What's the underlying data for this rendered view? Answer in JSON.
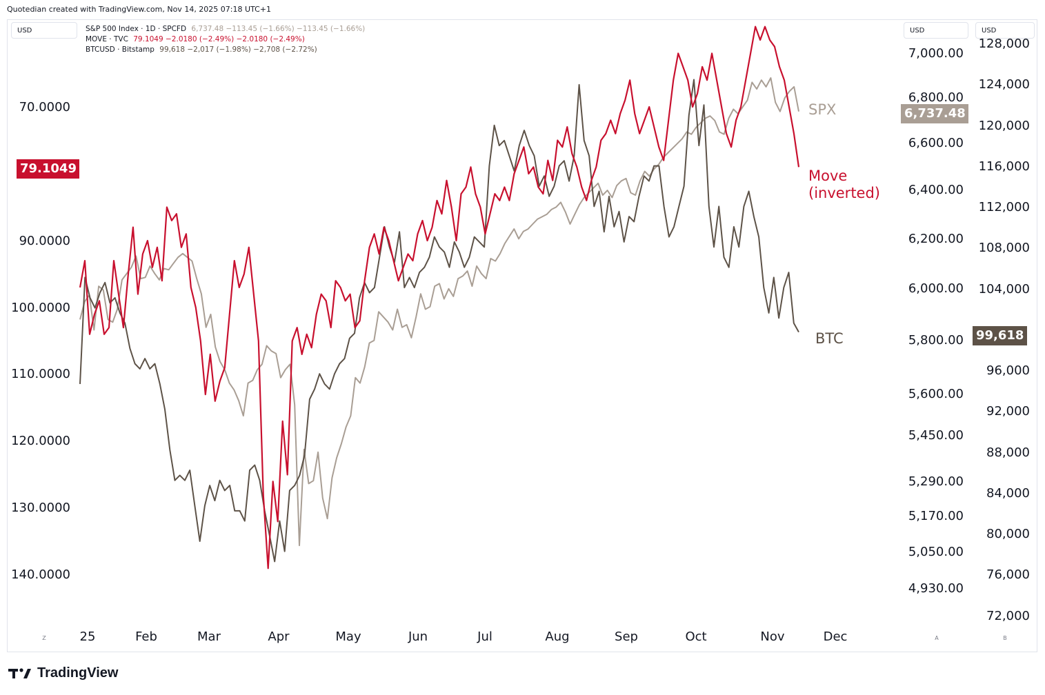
{
  "header": {
    "caption": "Quotedian created with TradingView.com, Nov 14, 2025 07:18 UTC+1"
  },
  "unit_boxes": {
    "left": "USD",
    "middle": "USD",
    "right": "USD"
  },
  "legend": [
    {
      "name": "S&P 500 Index · 1D · SPCFD",
      "values": "6,737.48 −113.45 (−1.66%) −113.45 (−1.66%)",
      "color": "#a99e94"
    },
    {
      "name": "MOVE · TVC",
      "values": "79.1049 −2.0180 (−2.49%) −2.0180 (−2.49%)",
      "color": "#c8102e"
    },
    {
      "name": "BTCUSD · Bitstamp",
      "values": "99,618 −2,017 (−1.98%) −2,708 (−2.72%)",
      "color": "#5d5247"
    }
  ],
  "brand": {
    "name": "TradingView"
  },
  "corner_buttons": {
    "z": "Z",
    "a": "A",
    "b": "B"
  },
  "colors": {
    "spx": "#a99e94",
    "move": "#c8102e",
    "btc": "#5d5247",
    "grid": "#e0e3eb"
  },
  "chart_data": {
    "type": "line",
    "x_tick_labels": [
      "25",
      "Feb",
      "Mar",
      "Apr",
      "May",
      "Jun",
      "Jul",
      "Aug",
      "Sep",
      "Oct",
      "Nov",
      "Dec"
    ],
    "axes": {
      "move_inverted": {
        "ticks": [
          "70.0000",
          "90.0000",
          "100.0000",
          "110.0000",
          "120.0000",
          "130.0000",
          "140.0000"
        ],
        "range": [
          140,
          70
        ],
        "inverted": true
      },
      "spx_log": {
        "ticks": [
          "7,000.00",
          "6,800.00",
          "6,600.00",
          "6,400.00",
          "6,200.00",
          "6,000.00",
          "5,800.00",
          "5,600.00",
          "5,450.00",
          "5,290.00",
          "5,170.00",
          "5,050.00",
          "4,930.00"
        ]
      },
      "btc": {
        "ticks": [
          "128,000",
          "124,000",
          "120,000",
          "116,000",
          "112,000",
          "108,000",
          "104,000",
          "96,000",
          "92,000",
          "88,000",
          "84,000",
          "80,000",
          "76,000",
          "72,000"
        ]
      }
    },
    "last_values": {
      "move": "79.1049",
      "spx": "6,737.48",
      "btc": "99,618"
    },
    "series_labels": {
      "spx": "SPX",
      "move_line1": "Move",
      "move_line2": "(inverted)",
      "btc": "BTC"
    },
    "series": [
      {
        "name": "SPX",
        "axis": "spx_log",
        "values": [
          5880,
          5950,
          5975,
          5840,
          6010,
          5995,
          5880,
          5870,
          5920,
          6035,
          6060,
          6085,
          6130,
          6040,
          6045,
          6090,
          6060,
          6035,
          6080,
          6075,
          6100,
          6125,
          6140,
          6125,
          6110,
          6040,
          5980,
          5850,
          5900,
          5775,
          5720,
          5690,
          5640,
          5615,
          5575,
          5520,
          5640,
          5650,
          5690,
          5710,
          5780,
          5760,
          5750,
          5660,
          5690,
          5710,
          5560,
          5070,
          5400,
          5280,
          5290,
          5390,
          5230,
          5160,
          5300,
          5370,
          5420,
          5480,
          5520,
          5660,
          5640,
          5700,
          5790,
          5800,
          5910,
          5890,
          5870,
          5840,
          5920,
          5850,
          5860,
          5810,
          5890,
          5980,
          5920,
          5930,
          6010,
          6020,
          5960,
          6000,
          5970,
          6040,
          6050,
          6070,
          6010,
          6090,
          6060,
          6040,
          6120,
          6110,
          6140,
          6180,
          6210,
          6240,
          6200,
          6230,
          6240,
          6260,
          6280,
          6290,
          6300,
          6320,
          6330,
          6350,
          6310,
          6260,
          6300,
          6340,
          6370,
          6390,
          6410,
          6430,
          6380,
          6400,
          6370,
          6420,
          6440,
          6450,
          6390,
          6380,
          6440,
          6480,
          6460,
          6490,
          6510,
          6540,
          6560,
          6580,
          6600,
          6620,
          6650,
          6640,
          6670,
          6690,
          6710,
          6720,
          6700,
          6650,
          6640,
          6710,
          6750,
          6730,
          6760,
          6790,
          6870,
          6840,
          6880,
          6850,
          6890,
          6780,
          6740,
          6800,
          6830,
          6850,
          6740
        ]
      },
      {
        "name": "Move (inverted)",
        "axis": "move_inverted",
        "values": [
          97,
          93,
          104,
          101,
          99,
          104,
          103,
          93,
          98,
          103,
          95,
          88,
          98,
          92,
          90,
          94,
          91,
          96,
          85,
          87,
          86,
          91,
          89,
          97,
          100,
          105,
          113,
          107,
          114,
          111,
          109,
          101,
          93,
          97,
          95,
          91,
          98,
          105,
          128,
          139,
          126,
          132,
          117,
          125,
          105,
          103,
          107,
          104,
          106,
          101,
          98,
          99,
          103,
          96,
          97,
          99,
          98,
          103,
          102,
          96,
          91,
          89,
          92,
          88,
          90,
          93,
          96,
          94,
          92,
          93,
          89,
          87,
          90,
          88,
          84,
          86,
          81,
          85,
          90,
          83,
          82,
          79,
          83,
          85,
          89,
          86,
          83,
          84,
          82,
          84,
          80,
          78,
          76,
          80,
          79,
          82,
          83,
          78,
          81,
          75,
          76,
          73,
          77,
          79,
          82,
          84,
          81,
          79,
          75,
          74,
          72,
          74,
          71,
          69,
          66,
          71,
          74,
          72,
          70,
          73,
          76,
          78,
          72,
          66,
          62,
          64,
          66,
          70,
          68,
          64,
          66,
          62,
          66,
          70,
          74,
          76,
          72,
          70,
          66,
          62,
          58,
          60,
          58,
          60,
          61,
          64,
          66,
          70,
          74,
          79
        ]
      },
      {
        "name": "BTC",
        "axis": "btc",
        "values": [
          94500,
          105000,
          103000,
          102000,
          103500,
          104500,
          102500,
          103000,
          101500,
          100500,
          98000,
          96500,
          96000,
          97000,
          96000,
          96500,
          94500,
          92000,
          88000,
          85000,
          85500,
          85000,
          86000,
          82500,
          79000,
          82500,
          84500,
          83000,
          85000,
          84000,
          84500,
          82000,
          82000,
          81000,
          86000,
          86500,
          85000,
          82000,
          79500,
          77000,
          81000,
          78000,
          84000,
          84500,
          85500,
          87500,
          93000,
          94000,
          95500,
          94500,
          94000,
          95500,
          96500,
          97000,
          99000,
          99500,
          103000,
          104500,
          103500,
          104000,
          107000,
          110000,
          108000,
          106500,
          109500,
          104000,
          105000,
          104000,
          105500,
          106000,
          107000,
          109000,
          108000,
          107500,
          106000,
          108500,
          107500,
          106000,
          107000,
          109000,
          108500,
          108000,
          116000,
          120000,
          118000,
          118500,
          117000,
          115500,
          118000,
          119500,
          118000,
          117000,
          114000,
          115000,
          113000,
          114000,
          116000,
          116500,
          114500,
          117000,
          124000,
          118500,
          117000,
          112000,
          113500,
          109500,
          113000,
          110000,
          111500,
          108500,
          111000,
          110500,
          113000,
          115000,
          114500,
          116000,
          116000,
          112000,
          109000,
          110000,
          112000,
          114000,
          121000,
          124500,
          118000,
          122000,
          112000,
          108000,
          112000,
          107000,
          106000,
          110000,
          108000,
          112000,
          113500,
          111000,
          109000,
          104000,
          101500,
          105000,
          101000,
          104000,
          105500,
          100500,
          99618
        ]
      }
    ]
  }
}
